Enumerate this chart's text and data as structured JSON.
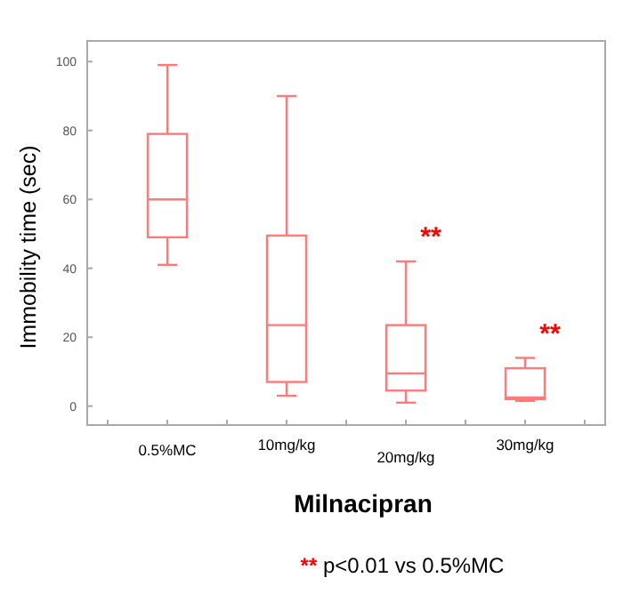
{
  "chart_data": {
    "type": "box",
    "ylabel": "Immobility time (sec)",
    "xlabel": "Milnacipran",
    "categories": [
      "0.5%MC",
      "10mg/kg",
      "20mg/kg",
      "30mg/kg"
    ],
    "color": "#ff7b7b",
    "boxes": [
      {
        "low": 41,
        "q1": 49,
        "median": 60,
        "q3": 79,
        "high": 99
      },
      {
        "low": 3,
        "q1": 7,
        "median": 23.5,
        "q3": 49.5,
        "high": 90
      },
      {
        "low": 1,
        "q1": 4.5,
        "median": 9.5,
        "q3": 23.5,
        "high": 42
      },
      {
        "low": 1.5,
        "q1": 2,
        "median": 2.5,
        "q3": 11,
        "high": 14
      }
    ],
    "ylim": [
      -5.5,
      106
    ],
    "yticks": [
      0,
      20,
      40,
      60,
      80,
      100
    ],
    "grid": false,
    "annotations": [
      {
        "text": "**",
        "x": "20mg/kg",
        "y": 42
      },
      {
        "text": "**",
        "x": "30mg/kg",
        "y": 14
      },
      "** p<0.01 vs 0.5%MC"
    ]
  }
}
